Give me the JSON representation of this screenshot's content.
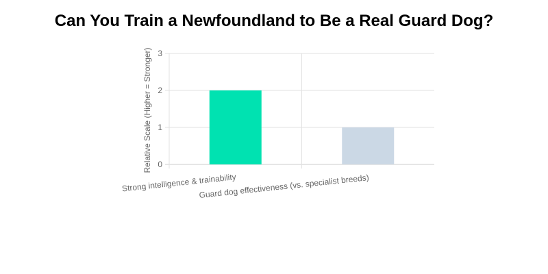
{
  "title": "Can You Train a Newfoundland to Be a Real Guard Dog?",
  "chart_data": {
    "type": "bar",
    "title": "Can You Train a Newfoundland to Be a Real Guard Dog?",
    "categories": [
      "Strong intelligence & trainability",
      "Guard dog effectiveness (vs. specialist breeds)"
    ],
    "values": [
      2,
      1
    ],
    "colors": [
      "#00E2B1",
      "#CBD8E5"
    ],
    "xlabel": "",
    "ylabel": "Relative Scale (Higher = Stronger)",
    "ylim": [
      0,
      3
    ],
    "yticks": [
      0,
      1,
      2,
      3
    ],
    "grid": true,
    "legend": null
  }
}
